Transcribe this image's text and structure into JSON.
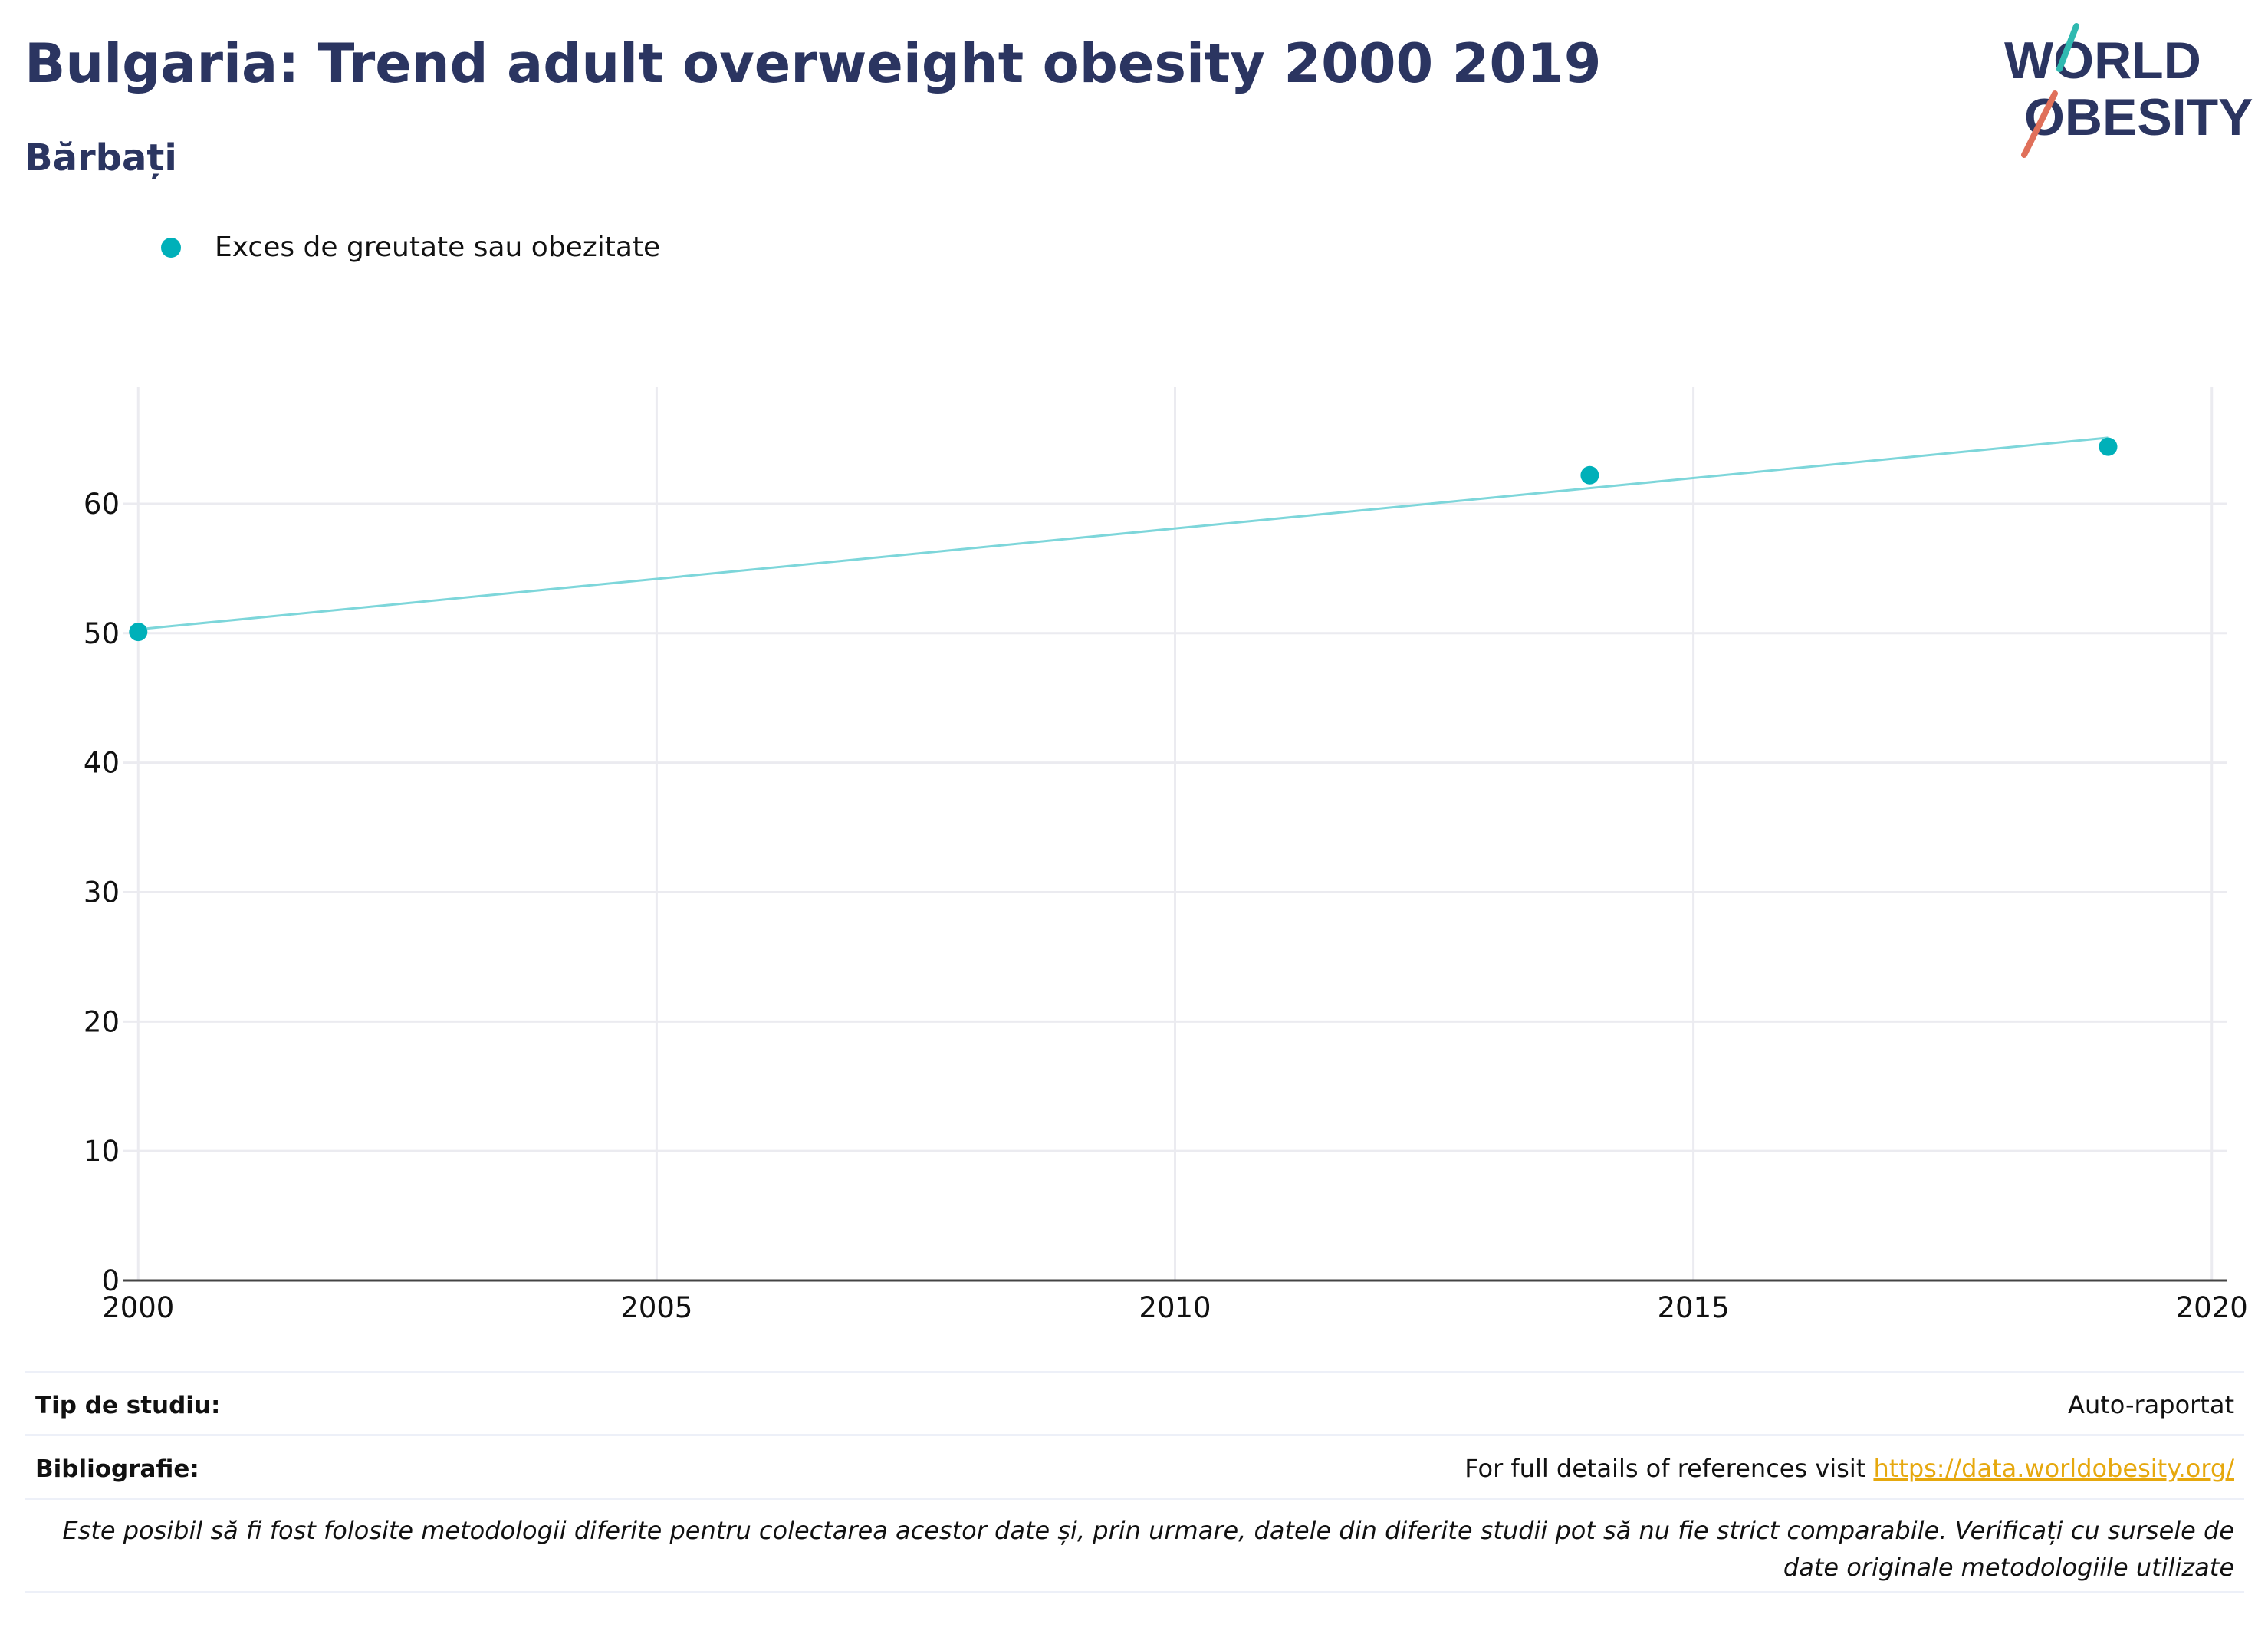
{
  "header": {
    "title": "Bulgaria: Trend adult overweight obesity 2000 2019",
    "subtitle": "Bărbați"
  },
  "logo": {
    "line1": "WORLD",
    "line2": "OBESITY"
  },
  "colors": {
    "title": "#2b3561",
    "series": "#00b0b9",
    "trendline": "#7dd6da",
    "grid": "#ebebf0",
    "logo_text": "#2b3561",
    "logo_slash_top": "#2fb9b0",
    "logo_slash_bottom": "#e0705a",
    "link": "#e6a80e"
  },
  "chart_data": {
    "type": "scatter",
    "title": "Bulgaria: Trend adult overweight obesity 2000 2019",
    "subtitle": "Bărbați",
    "xlabel": "",
    "ylabel": "",
    "xlim": [
      1999.85,
      2020.15
    ],
    "ylim": [
      0,
      69
    ],
    "xticks": [
      2000,
      2005,
      2010,
      2015,
      2020
    ],
    "yticks": [
      0,
      10,
      20,
      30,
      40,
      50,
      60
    ],
    "grid": true,
    "legend_position": "top-left",
    "series": [
      {
        "name": "Exces de greutate sau obezitate",
        "x": [
          2000,
          2014,
          2019
        ],
        "y": [
          50.1,
          62.2,
          64.4
        ]
      }
    ],
    "trendline": {
      "x": [
        2000,
        2019
      ],
      "y": [
        50.3,
        65.1
      ]
    }
  },
  "footer": {
    "study_type_label": "Tip de studiu:",
    "study_type_value": "Auto-raportat",
    "bibliography_label": "Bibliografie:",
    "bibliography_text": "For full details of references visit ",
    "bibliography_link": "https://data.worldobesity.org/",
    "note": "Este posibil să fi fost folosite metodologii diferite pentru colectarea acestor date și, prin urmare, datele din diferite studii pot să nu fie strict comparabile. Verificați cu sursele de date originale metodologiile utilizate"
  }
}
